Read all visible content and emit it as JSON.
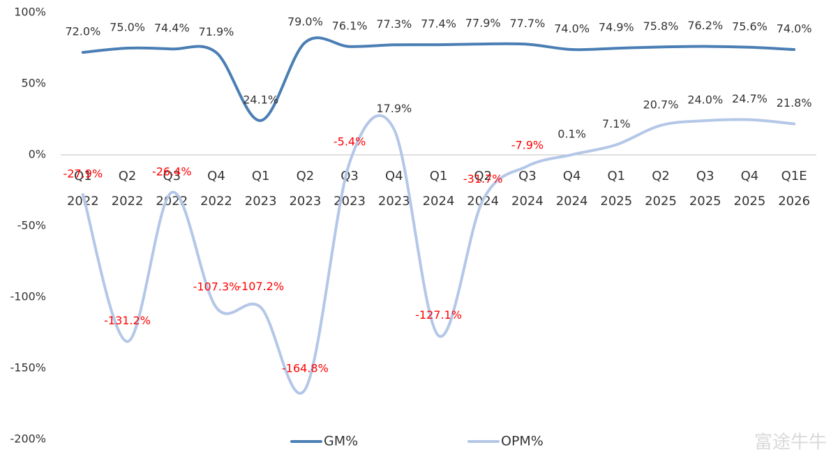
{
  "chart_data": {
    "type": "line",
    "categories": [
      [
        "Q1",
        "2022"
      ],
      [
        "Q2",
        "2022"
      ],
      [
        "Q3",
        "2022"
      ],
      [
        "Q4",
        "2022"
      ],
      [
        "Q1",
        "2023"
      ],
      [
        "Q2",
        "2023"
      ],
      [
        "Q3",
        "2023"
      ],
      [
        "Q4",
        "2023"
      ],
      [
        "Q1",
        "2024"
      ],
      [
        "Q2",
        "2024"
      ],
      [
        "Q3",
        "2024"
      ],
      [
        "Q4",
        "2024"
      ],
      [
        "Q1",
        "2025"
      ],
      [
        "Q2",
        "2025"
      ],
      [
        "Q3",
        "2025"
      ],
      [
        "Q4",
        "2025"
      ],
      [
        "Q1E",
        "2026"
      ]
    ],
    "series": [
      {
        "name": "GM%",
        "color": "#4a7eb4",
        "values": [
          72.0,
          75.0,
          74.4,
          71.9,
          24.1,
          79.0,
          76.1,
          77.3,
          77.4,
          77.9,
          77.7,
          74.0,
          74.9,
          75.8,
          76.2,
          75.6,
          74.0
        ],
        "value_labels": [
          "72.0%",
          "75.0%",
          "74.4%",
          "71.9%",
          "24.1%",
          "79.0%",
          "76.1%",
          "77.3%",
          "77.4%",
          "77.9%",
          "77.7%",
          "74.0%",
          "74.9%",
          "75.8%",
          "76.2%",
          "75.6%",
          "74.0%"
        ]
      },
      {
        "name": "OPM%",
        "color": "#b4c7e7",
        "values": [
          -27.9,
          -131.2,
          -26.4,
          -107.3,
          -107.2,
          -164.8,
          -5.4,
          17.9,
          -127.1,
          -31.7,
          -7.9,
          0.1,
          7.1,
          20.7,
          24.0,
          24.7,
          21.8
        ],
        "value_labels": [
          "-27.9%",
          "-131.2%",
          "-26.4%",
          "-107.3%",
          "-107.2%",
          "-164.8%",
          "-5.4%",
          "17.9%",
          "-127.1%",
          "-31.7%",
          "-7.9%",
          "0.1%",
          "7.1%",
          "20.7%",
          "24.0%",
          "24.7%",
          "21.8%"
        ]
      }
    ],
    "ylim": [
      -200,
      100
    ],
    "yticks": [
      {
        "value": -200,
        "label": "-200%"
      },
      {
        "value": -150,
        "label": "-150%"
      },
      {
        "value": -100,
        "label": "-100%"
      },
      {
        "value": -50,
        "label": "-50%"
      },
      {
        "value": 0,
        "label": "0%"
      },
      {
        "value": 50,
        "label": "50%"
      },
      {
        "value": 100,
        "label": "100%"
      }
    ],
    "smooth": true,
    "legend": "bottom",
    "value_label_color": "#333333",
    "negative_value_label_color": "#ff0000",
    "watermark": "富途牛牛"
  }
}
